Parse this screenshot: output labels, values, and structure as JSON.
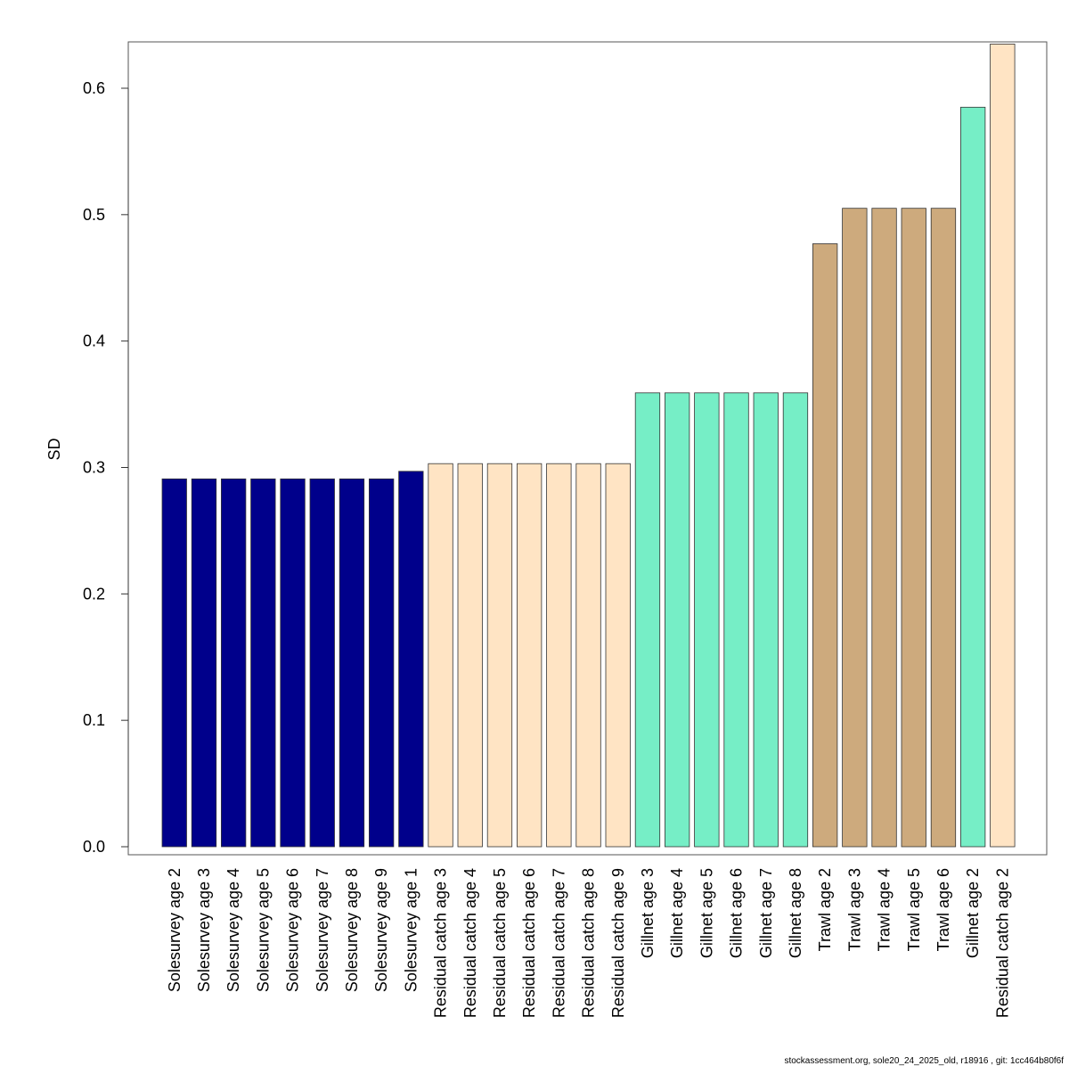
{
  "chart_data": {
    "type": "bar",
    "title": "",
    "xlabel": "",
    "ylabel": "SD",
    "ylim": [
      0,
      0.635
    ],
    "yticks": [
      "0.0",
      "0.1",
      "0.2",
      "0.3",
      "0.4",
      "0.5",
      "0.6"
    ],
    "ytick_values": [
      0.0,
      0.1,
      0.2,
      0.3,
      0.4,
      0.5,
      0.6
    ],
    "grid": false,
    "categories": [
      "Solesurvey age 2",
      "Solesurvey age 3",
      "Solesurvey age 4",
      "Solesurvey age 5",
      "Solesurvey age 6",
      "Solesurvey age 7",
      "Solesurvey age 8",
      "Solesurvey age 9",
      "Solesurvey age 1",
      "Residual catch age 3",
      "Residual catch age 4",
      "Residual catch age 5",
      "Residual catch age 6",
      "Residual catch age 7",
      "Residual catch age 8",
      "Residual catch age 9",
      "Gillnet age 3",
      "Gillnet age 4",
      "Gillnet age 5",
      "Gillnet age 6",
      "Gillnet age 7",
      "Gillnet age 8",
      "Trawl age 2",
      "Trawl age 3",
      "Trawl age 4",
      "Trawl age 5",
      "Trawl age 6",
      "Gillnet age 2",
      "Residual catch age 2"
    ],
    "values": [
      0.291,
      0.291,
      0.291,
      0.291,
      0.291,
      0.291,
      0.291,
      0.291,
      0.297,
      0.303,
      0.303,
      0.303,
      0.303,
      0.303,
      0.303,
      0.303,
      0.359,
      0.359,
      0.359,
      0.359,
      0.359,
      0.359,
      0.477,
      0.505,
      0.505,
      0.505,
      0.505,
      0.585,
      0.635
    ],
    "bar_colors": [
      "#00008b",
      "#00008b",
      "#00008b",
      "#00008b",
      "#00008b",
      "#00008b",
      "#00008b",
      "#00008b",
      "#00008b",
      "#ffe4c4",
      "#ffe4c4",
      "#ffe4c4",
      "#ffe4c4",
      "#ffe4c4",
      "#ffe4c4",
      "#ffe4c4",
      "#76eec6",
      "#76eec6",
      "#76eec6",
      "#76eec6",
      "#76eec6",
      "#76eec6",
      "#cdaa7d",
      "#cdaa7d",
      "#cdaa7d",
      "#cdaa7d",
      "#cdaa7d",
      "#76eec6",
      "#ffe4c4"
    ]
  },
  "footer": {
    "text": "stockassessment.org, sole20_24_2025_old, r18916 , git: 1cc464b80f6f"
  }
}
